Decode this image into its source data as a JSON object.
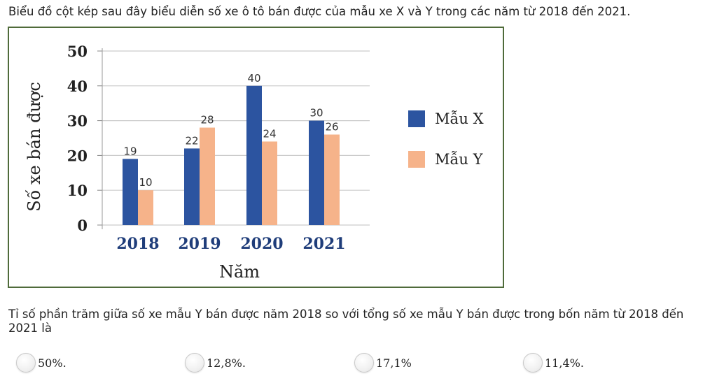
{
  "intro": "Biểu đồ cột kép sau đây biểu diễn số xe ô tô bán được của mẫu xe X và Y trong các năm từ 2018 đến 2021.",
  "question": "Tỉ số phần trăm giữa số xe mẫu Y bán được năm 2018 so với tổng số xe mẫu Y bán được trong bốn năm từ 2018 đến 2021 là",
  "options": [
    "50%.",
    "12,8%.",
    "17,1%",
    "11,4%."
  ],
  "chart_data": {
    "type": "bar",
    "categories": [
      "2018",
      "2019",
      "2020",
      "2021"
    ],
    "series": [
      {
        "name": "Mẫu X",
        "values": [
          19,
          22,
          40,
          30
        ],
        "color": "#2c54a0"
      },
      {
        "name": "Mẫu Y",
        "values": [
          10,
          28,
          24,
          26
        ],
        "color": "#f6b38a"
      }
    ],
    "xlabel": "Năm",
    "ylabel": "Số xe bán được",
    "ylim": [
      0,
      50
    ],
    "yticks": [
      0,
      10,
      20,
      30,
      40,
      50
    ],
    "grid": true,
    "legend": "right",
    "data_labels": true,
    "colors": {
      "gridline": "#cccccc",
      "axis_text": "#222222",
      "category_text": "#1f3d7a",
      "frame": "#4f6b3a"
    }
  }
}
